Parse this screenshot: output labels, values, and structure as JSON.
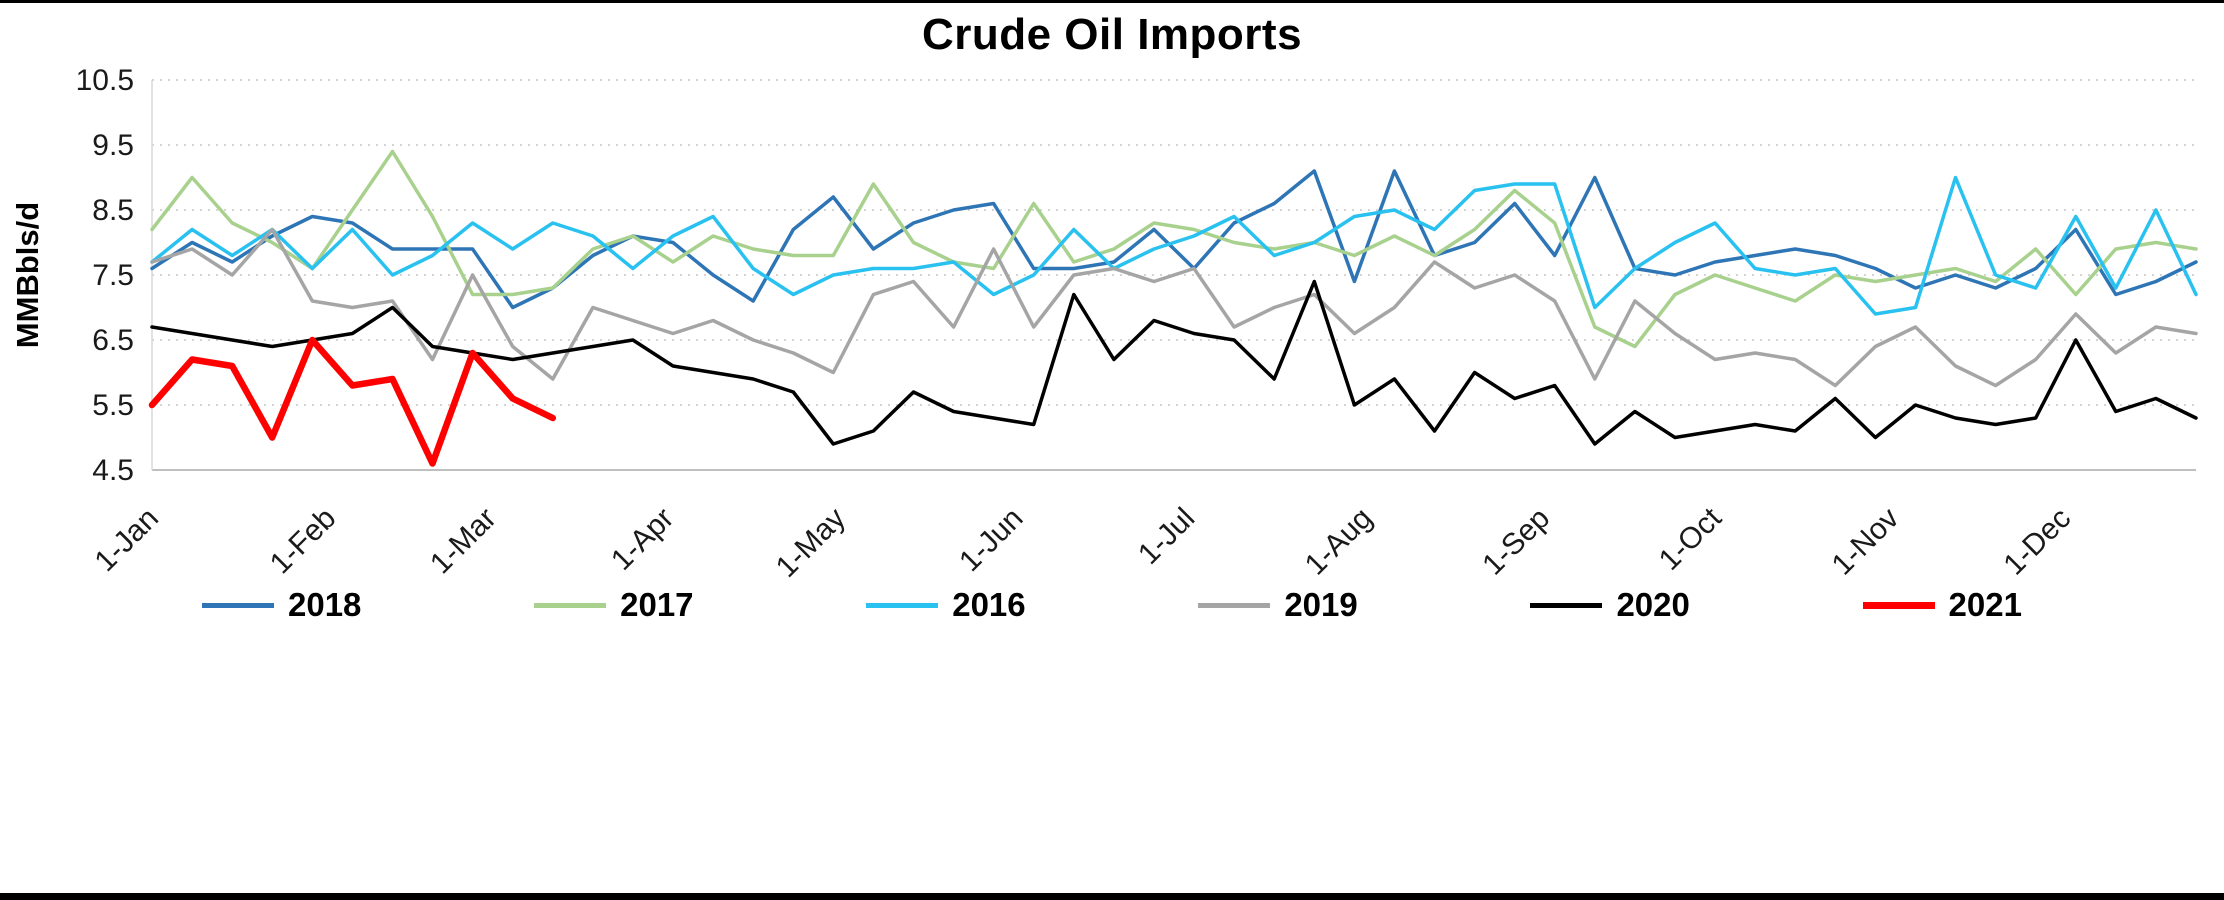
{
  "chart_data": {
    "type": "line",
    "title": "Crude Oil Imports",
    "xlabel": "",
    "ylabel": "MMBbls/d",
    "ylim": [
      4.5,
      10.5
    ],
    "yticks": [
      4.5,
      5.5,
      6.5,
      7.5,
      8.5,
      9.5,
      10.5
    ],
    "x_tick_labels": [
      "1-Jan",
      "1-Feb",
      "1-Mar",
      "1-Apr",
      "1-May",
      "1-Jun",
      "1-Jul",
      "1-Aug",
      "1-Sep",
      "1-Oct",
      "1-Nov",
      "1-Dec"
    ],
    "x_frequency": "weekly",
    "grid": "horizontal-dotted",
    "legend_position": "bottom",
    "series": [
      {
        "name": "2018",
        "color": "#2E75B6",
        "values": [
          7.6,
          8.0,
          7.7,
          8.1,
          8.4,
          8.3,
          7.9,
          7.9,
          7.9,
          7.0,
          7.3,
          7.8,
          8.1,
          8.0,
          7.5,
          7.1,
          8.2,
          8.7,
          7.9,
          8.3,
          8.5,
          8.6,
          7.6,
          7.6,
          7.7,
          8.2,
          7.6,
          8.3,
          8.6,
          9.1,
          7.4,
          9.1,
          7.8,
          8.0,
          8.6,
          7.8,
          9.0,
          7.6,
          7.5,
          7.7,
          7.8,
          7.9,
          7.8,
          7.6,
          7.3,
          7.5,
          7.3,
          7.6,
          8.2,
          7.2,
          7.4,
          7.7
        ]
      },
      {
        "name": "2017",
        "color": "#A9D18E",
        "values": [
          8.2,
          9.0,
          8.3,
          8.0,
          7.6,
          8.5,
          9.4,
          8.4,
          7.2,
          7.2,
          7.3,
          7.9,
          8.1,
          7.7,
          8.1,
          7.9,
          7.8,
          7.8,
          8.9,
          8.0,
          7.7,
          7.6,
          8.6,
          7.7,
          7.9,
          8.3,
          8.2,
          8.0,
          7.9,
          8.0,
          7.8,
          8.1,
          7.8,
          8.2,
          8.8,
          8.3,
          6.7,
          6.4,
          7.2,
          7.5,
          7.3,
          7.1,
          7.5,
          7.4,
          7.5,
          7.6,
          7.4,
          7.9,
          7.2,
          7.9,
          8.0,
          7.9
        ]
      },
      {
        "name": "2016",
        "color": "#29C1F0",
        "values": [
          7.7,
          8.2,
          7.8,
          8.2,
          7.6,
          8.2,
          7.5,
          7.8,
          8.3,
          7.9,
          8.3,
          8.1,
          7.6,
          8.1,
          8.4,
          7.6,
          7.2,
          7.5,
          7.6,
          7.6,
          7.7,
          7.2,
          7.5,
          8.2,
          7.6,
          7.9,
          8.1,
          8.4,
          7.8,
          8.0,
          8.4,
          8.5,
          8.2,
          8.8,
          8.9,
          8.9,
          7.0,
          7.6,
          8.0,
          8.3,
          7.6,
          7.5,
          7.6,
          6.9,
          7.0,
          9.0,
          7.5,
          7.3,
          8.4,
          7.3,
          8.5,
          7.2
        ]
      },
      {
        "name": "2019",
        "color": "#A5A5A5",
        "values": [
          7.7,
          7.9,
          7.5,
          8.2,
          7.1,
          7.0,
          7.1,
          6.2,
          7.5,
          6.4,
          5.9,
          7.0,
          6.8,
          6.6,
          6.8,
          6.5,
          6.3,
          6.0,
          7.2,
          7.4,
          6.7,
          7.9,
          6.7,
          7.5,
          7.6,
          7.4,
          7.6,
          6.7,
          7.0,
          7.2,
          6.6,
          7.0,
          7.7,
          7.3,
          7.5,
          7.1,
          5.9,
          7.1,
          6.6,
          6.2,
          6.3,
          6.2,
          5.8,
          6.4,
          6.7,
          6.1,
          5.8,
          6.2,
          6.9,
          6.3,
          6.7,
          6.6
        ]
      },
      {
        "name": "2020",
        "color": "#000000",
        "values": [
          6.7,
          6.6,
          6.5,
          6.4,
          6.5,
          6.6,
          7.0,
          6.4,
          6.3,
          6.2,
          6.3,
          6.4,
          6.5,
          6.1,
          6.0,
          5.9,
          5.7,
          4.9,
          5.1,
          5.7,
          5.4,
          5.3,
          5.2,
          7.2,
          6.2,
          6.8,
          6.6,
          6.5,
          5.9,
          7.4,
          5.5,
          5.9,
          5.1,
          6.0,
          5.6,
          5.8,
          4.9,
          5.4,
          5.0,
          5.1,
          5.2,
          5.1,
          5.6,
          5.0,
          5.5,
          5.3,
          5.2,
          5.3,
          6.5,
          5.4,
          5.6,
          5.3
        ]
      },
      {
        "name": "2021",
        "color": "#FF0000",
        "values": [
          5.5,
          6.2,
          6.1,
          5.0,
          6.5,
          5.8,
          5.9,
          4.6,
          6.3,
          5.6,
          5.3
        ]
      }
    ]
  }
}
